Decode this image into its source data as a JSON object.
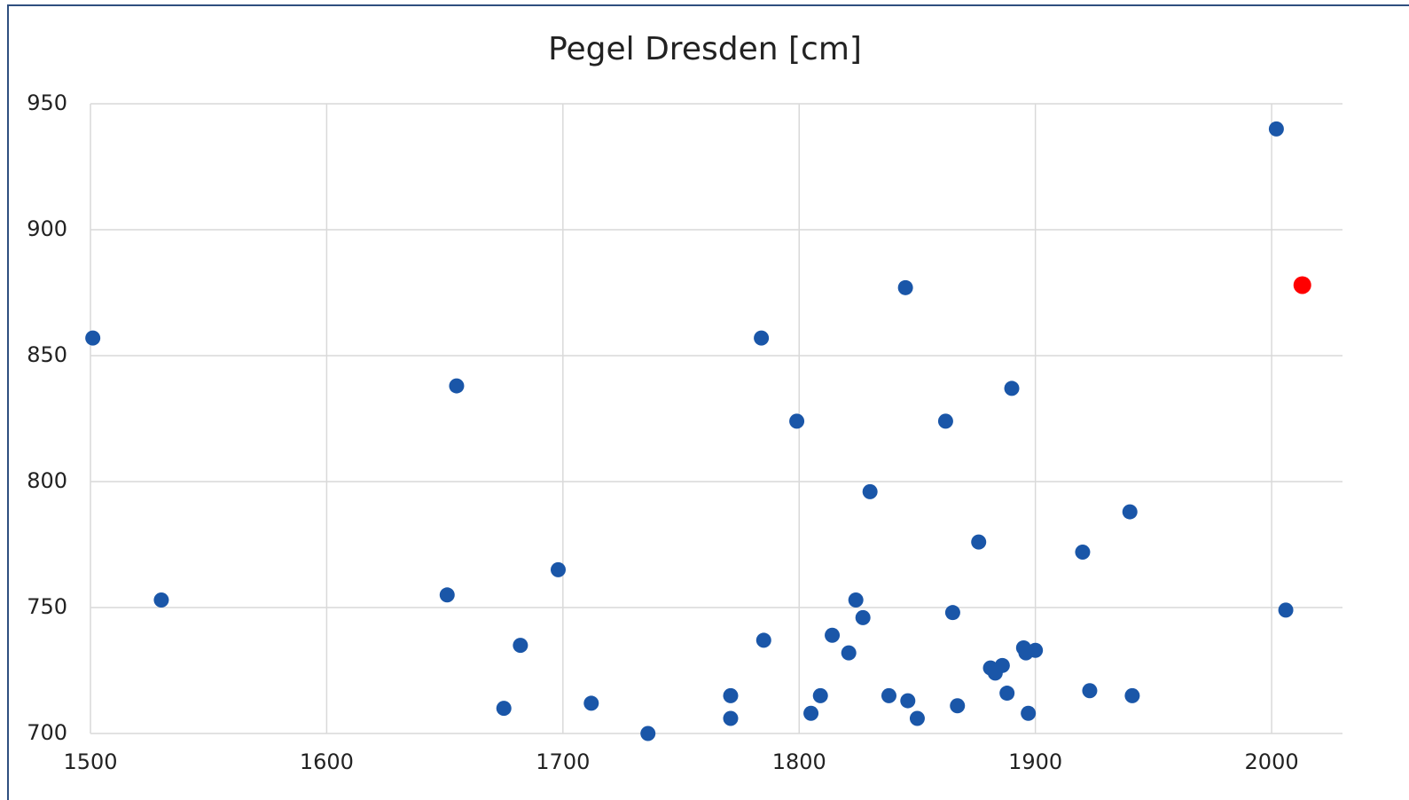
{
  "chart_data": {
    "type": "scatter",
    "title": "Pegel Dresden [cm]",
    "series": [
      {
        "color": "#1a56a8",
        "x": [
          1501,
          1530,
          1655,
          1651,
          1682,
          1675,
          1698,
          1712,
          1736,
          1771,
          1771,
          1784,
          1785,
          1799,
          1805,
          1809,
          1814,
          1821,
          1824,
          1827,
          1830,
          1838,
          1845,
          1846,
          1850,
          1862,
          1865,
          1867,
          1876,
          1881,
          1883,
          1886,
          1888,
          1890,
          1895,
          1896,
          1897,
          1900,
          1920,
          1923,
          1940,
          1941,
          2002,
          2006
        ],
        "values": [
          857,
          753,
          838,
          755,
          735,
          710,
          765,
          712,
          700,
          715,
          706,
          857,
          737,
          824,
          708,
          715,
          739,
          732,
          753,
          746,
          796,
          715,
          877,
          713,
          706,
          824,
          748,
          711,
          776,
          726,
          724,
          727,
          716,
          837,
          734,
          732,
          708,
          733,
          772,
          717,
          788,
          715,
          940,
          749
        ]
      },
      {
        "color": "#ff0000",
        "x": [
          2013
        ],
        "values": [
          878
        ]
      }
    ],
    "xlim": [
      1500,
      2030
    ],
    "xticks": [
      1500,
      1600,
      1700,
      1800,
      1900,
      2000
    ],
    "ylim": [
      700,
      950
    ],
    "yticks": [
      700,
      750,
      800,
      850,
      900,
      950
    ],
    "grid": true
  }
}
